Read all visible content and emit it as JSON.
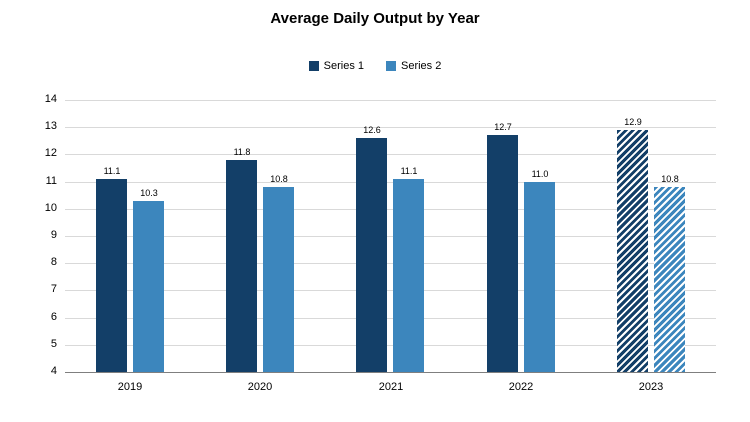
{
  "title": "Average Daily Output by Year",
  "legend": [
    {
      "label": "Series 1",
      "color": "#133f68"
    },
    {
      "label": "Series 2",
      "color": "#3c86bd"
    }
  ],
  "colors": {
    "series1": "#133f68",
    "series2": "#3c86bd",
    "gridline": "#d9d9d9",
    "axis_line": "#7f7f7f",
    "hatch_stripe": "rgba(255,255,255,0.92)",
    "text": "#000000"
  },
  "chart_data": {
    "type": "bar",
    "title": "Average Daily Output by Year",
    "categories": [
      "2019",
      "2020",
      "2021",
      "2022",
      "2023"
    ],
    "series": [
      {
        "name": "Series 1",
        "values": [
          11.1,
          11.8,
          12.6,
          12.7,
          12.9
        ]
      },
      {
        "name": "Series 2",
        "values": [
          10.3,
          10.8,
          11.1,
          11.0,
          10.8
        ]
      }
    ],
    "hatched_category_index": 4,
    "data_labels": true,
    "data_label_format": "0.0",
    "grid": true,
    "legend_position": "top",
    "xlabel": "",
    "ylabel": "",
    "ylim": [
      4,
      14
    ],
    "yticks": [
      4,
      5,
      6,
      7,
      8,
      9,
      10,
      11,
      12,
      13,
      14
    ]
  }
}
